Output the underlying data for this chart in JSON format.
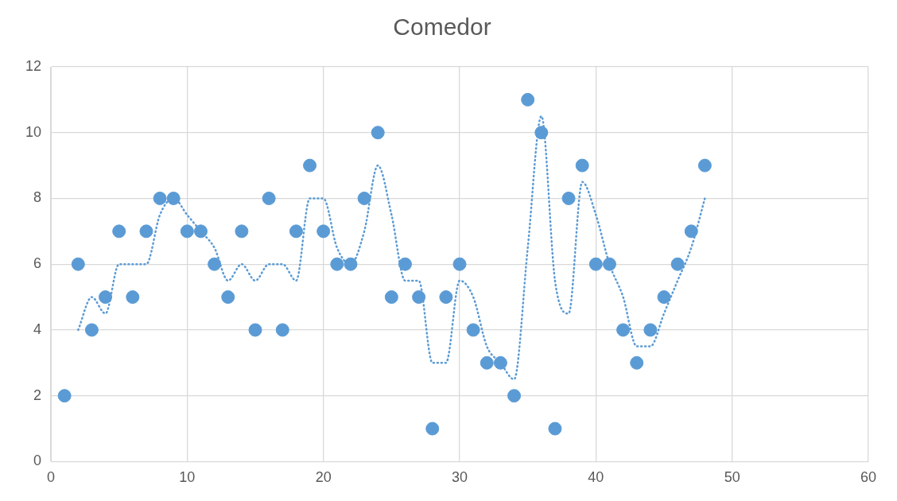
{
  "chart_data": {
    "type": "scatter",
    "title": "Comedor",
    "x": [
      1,
      2,
      3,
      4,
      5,
      6,
      7,
      8,
      9,
      10,
      11,
      12,
      13,
      14,
      15,
      16,
      17,
      18,
      19,
      20,
      21,
      22,
      23,
      24,
      25,
      26,
      27,
      28,
      29,
      30,
      31,
      32,
      33,
      34,
      35,
      36,
      37,
      38,
      39,
      40,
      41,
      42,
      43,
      44,
      45,
      46,
      47,
      48
    ],
    "series": [
      {
        "color": "#5b9bd5",
        "values": [
          2,
          6,
          4,
          5,
          7,
          5,
          7,
          8,
          8,
          7,
          7,
          6,
          5,
          7,
          4,
          8,
          4,
          7,
          9,
          7,
          6,
          6,
          8,
          10,
          5,
          6,
          5,
          1,
          5,
          6,
          4,
          3,
          3,
          2,
          11,
          10,
          1,
          8,
          9,
          6,
          6,
          4,
          3,
          4,
          5,
          6,
          7,
          9
        ]
      },
      {
        "type": "line",
        "color": "#5b9bd5",
        "line_style": "dotted",
        "marker": "none",
        "x": [
          2,
          3,
          4,
          5,
          6,
          7,
          8,
          9,
          10,
          11,
          12,
          13,
          14,
          15,
          16,
          17,
          18,
          19,
          20,
          21,
          22,
          23,
          24,
          25,
          26,
          27,
          28,
          29,
          30,
          31,
          32,
          33,
          34,
          35,
          36,
          37,
          38,
          39,
          40,
          41,
          42,
          43,
          44,
          45,
          46,
          47,
          48
        ],
        "values": [
          4,
          5,
          4.5,
          6,
          6,
          6,
          7.5,
          8,
          7.5,
          7,
          6.5,
          5.5,
          6,
          5.5,
          6,
          6,
          5.5,
          8,
          8,
          6.5,
          6,
          7,
          9,
          7.5,
          5.5,
          5.5,
          3,
          3,
          5.5,
          5,
          3.5,
          3,
          2.5,
          6.5,
          10.5,
          5.5,
          4.5,
          8.5,
          7.5,
          6,
          5,
          3.5,
          3.5,
          4.5,
          5.5,
          6.5,
          8
        ]
      }
    ],
    "xlim": [
      0,
      60
    ],
    "xticks": [
      0,
      10,
      20,
      30,
      40,
      50,
      60
    ],
    "ylim": [
      0,
      12
    ],
    "yticks": [
      0,
      2,
      4,
      6,
      8,
      10,
      12
    ],
    "grid": true,
    "marker": "circle"
  }
}
